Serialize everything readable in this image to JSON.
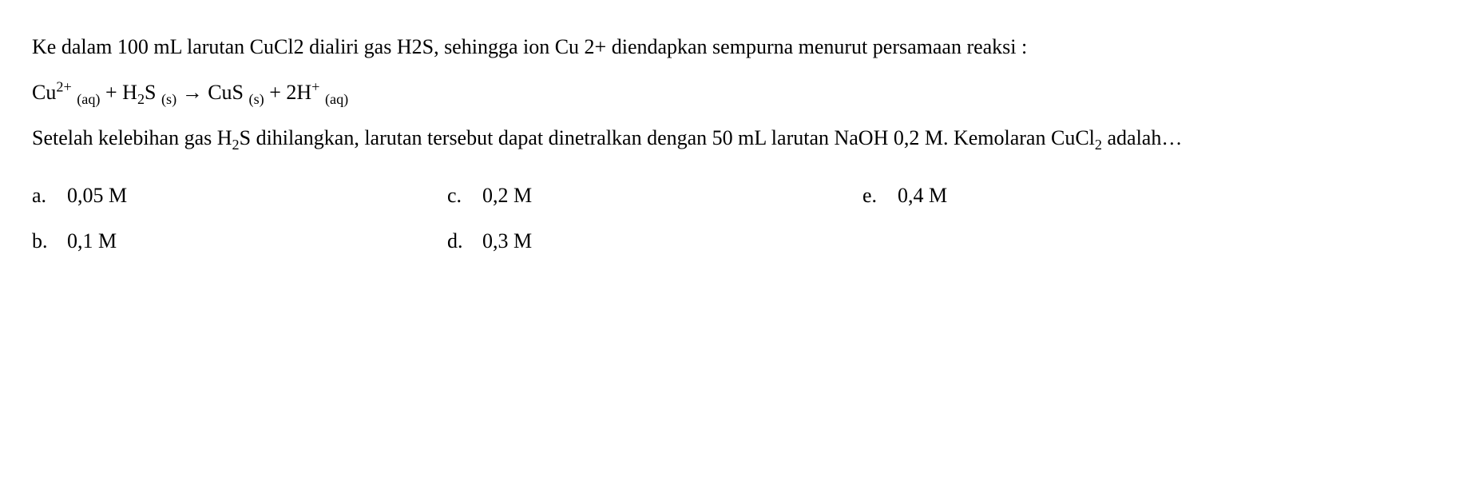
{
  "question": {
    "part1_pre": "Ke dalam 100 mL larutan CuCl2 dialiri gas H2S, sehingga ion Cu 2+ diendapkan sempurna menurut persamaan reaksi :",
    "equation_html": "Cu<sup>2+</sup> <sub>(aq)</sub> + H<sub>2</sub>S <sub>(s)</sub> → CuS <sub>(s)</sub> + 2H<sup>+</sup> <sub>(aq)</sub>",
    "part2_html": "Setelah kelebihan gas H<sub>2</sub>S dihilangkan, larutan tersebut dapat dinetralkan dengan 50 mL larutan NaOH 0,2 M. Kemolaran CuCl<sub>2</sub> adalah…"
  },
  "options": {
    "a": {
      "label": "a.",
      "text": "0,05 M"
    },
    "b": {
      "label": "b.",
      "text": "0,1 M"
    },
    "c": {
      "label": "c.",
      "text": "0,2 M"
    },
    "d": {
      "label": "d.",
      "text": "0,3 M"
    },
    "e": {
      "label": "e.",
      "text": "0,4 M"
    }
  },
  "style": {
    "font_family": "Times New Roman",
    "font_size_pt": 20,
    "text_color": "#000000",
    "background_color": "#ffffff",
    "line_height": 2.2
  }
}
